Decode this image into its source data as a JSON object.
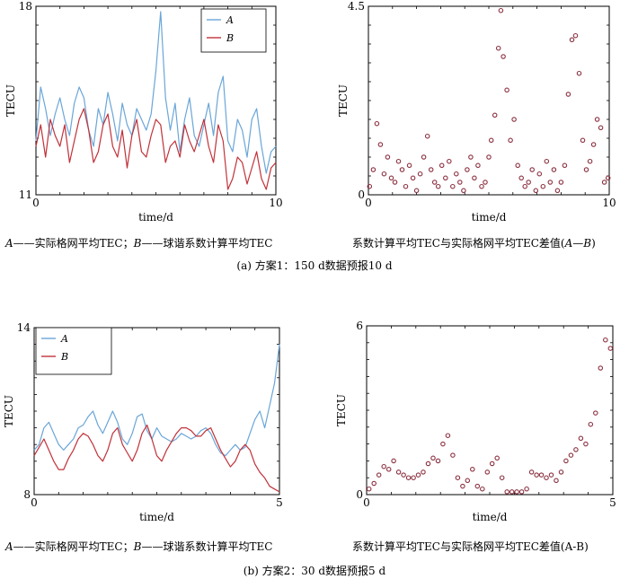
{
  "colors": {
    "A": "#6aa6d8",
    "B": "#c0323a",
    "marker": "#8b3040",
    "axis": "#000000"
  },
  "captions": {
    "panel_a_left": {
      "a": "A",
      "mid": "——实际格网平均TEC；",
      "b": "B",
      "end": "——球谐系数计算平均TEC"
    },
    "panel_a_right": {
      "pre": "系数计算平均TEC与实际格网平均TEC差值(",
      "a": "A",
      "dash": "—",
      "b": "B",
      "post": ")"
    },
    "panel_a": "(a) 方案1：150 d数据预报10 d",
    "panel_b_left": {
      "a": "A",
      "mid": "——实际格网平均TEC；",
      "b": "B",
      "end": "——球谐系数计算平均TEC"
    },
    "panel_b_right": "系数计算平均TEC与实际格网平均TEC差值(A-B)",
    "panel_b": "(b) 方案2：30 d数据预报5 d"
  },
  "chart_data": [
    {
      "id": "a_line",
      "type": "line",
      "xlabel": "time/d",
      "ylabel": "TECU",
      "xlim": [
        0,
        10
      ],
      "ylim": [
        11,
        18
      ],
      "xticks": [
        0,
        10
      ],
      "yticks": [
        11,
        18
      ],
      "legend": "top-center",
      "series": [
        {
          "name": "A",
          "x": [
            0,
            0.2,
            0.4,
            0.6,
            0.8,
            1.0,
            1.2,
            1.4,
            1.6,
            1.8,
            2.0,
            2.2,
            2.4,
            2.6,
            2.8,
            3.0,
            3.2,
            3.4,
            3.6,
            3.8,
            4.0,
            4.2,
            4.4,
            4.6,
            4.8,
            5.0,
            5.2,
            5.4,
            5.6,
            5.8,
            6.0,
            6.2,
            6.4,
            6.6,
            6.8,
            7.0,
            7.2,
            7.4,
            7.6,
            7.8,
            8.0,
            8.2,
            8.4,
            8.6,
            8.8,
            9.0,
            9.2,
            9.4,
            9.6,
            9.8,
            10.0
          ],
          "values": [
            13.0,
            15.0,
            14.2,
            13.2,
            14.0,
            14.6,
            13.8,
            13.2,
            14.4,
            15.0,
            14.6,
            13.4,
            12.8,
            14.2,
            13.6,
            14.8,
            14.0,
            13.0,
            14.4,
            13.6,
            13.2,
            14.2,
            13.8,
            13.4,
            14.0,
            15.6,
            17.8,
            14.6,
            13.4,
            14.4,
            12.6,
            13.8,
            14.6,
            13.2,
            12.8,
            13.6,
            14.4,
            13.2,
            14.8,
            15.4,
            13.0,
            12.6,
            13.8,
            13.4,
            12.4,
            13.8,
            14.2,
            12.8,
            11.8,
            12.6,
            12.8
          ]
        },
        {
          "name": "B",
          "x": [
            0,
            0.2,
            0.4,
            0.6,
            0.8,
            1.0,
            1.2,
            1.4,
            1.6,
            1.8,
            2.0,
            2.2,
            2.4,
            2.6,
            2.8,
            3.0,
            3.2,
            3.4,
            3.6,
            3.8,
            4.0,
            4.2,
            4.4,
            4.6,
            4.8,
            5.0,
            5.2,
            5.4,
            5.6,
            5.8,
            6.0,
            6.2,
            6.4,
            6.6,
            6.8,
            7.0,
            7.2,
            7.4,
            7.6,
            7.8,
            8.0,
            8.2,
            8.4,
            8.6,
            8.8,
            9.0,
            9.2,
            9.4,
            9.6,
            9.8,
            10.0
          ],
          "values": [
            12.8,
            13.6,
            12.4,
            13.8,
            13.2,
            12.8,
            13.6,
            12.2,
            13.0,
            13.8,
            14.2,
            13.4,
            12.2,
            12.6,
            13.6,
            14.0,
            12.8,
            12.4,
            13.4,
            12.0,
            13.2,
            13.8,
            12.6,
            12.4,
            13.2,
            13.8,
            13.6,
            12.2,
            12.8,
            13.0,
            12.4,
            13.6,
            13.0,
            12.6,
            13.2,
            13.8,
            12.8,
            12.2,
            13.6,
            13.0,
            11.2,
            11.6,
            12.4,
            12.2,
            11.4,
            12.0,
            12.6,
            11.6,
            11.2,
            12.0,
            12.2
          ]
        }
      ]
    },
    {
      "id": "a_scatter",
      "type": "scatter",
      "xlabel": "time/d",
      "ylabel": "TECU",
      "xlim": [
        0,
        10
      ],
      "ylim": [
        0,
        4.5
      ],
      "xticks": [
        0,
        10
      ],
      "yticks": [
        0,
        4.5
      ],
      "x": [
        0.05,
        0.2,
        0.35,
        0.5,
        0.65,
        0.8,
        0.95,
        1.1,
        1.25,
        1.4,
        1.55,
        1.7,
        1.85,
        2.0,
        2.15,
        2.3,
        2.45,
        2.6,
        2.75,
        2.9,
        3.05,
        3.2,
        3.35,
        3.5,
        3.65,
        3.8,
        3.95,
        4.1,
        4.25,
        4.4,
        4.55,
        4.7,
        4.85,
        5.0,
        5.1,
        5.25,
        5.4,
        5.5,
        5.6,
        5.75,
        5.9,
        6.05,
        6.2,
        6.35,
        6.5,
        6.65,
        6.8,
        6.95,
        7.1,
        7.25,
        7.4,
        7.55,
        7.7,
        7.85,
        8.0,
        8.15,
        8.3,
        8.45,
        8.6,
        8.75,
        8.9,
        9.05,
        9.2,
        9.35,
        9.5,
        9.65,
        9.8,
        9.95
      ],
      "values": [
        0.2,
        0.6,
        1.7,
        1.2,
        0.5,
        0.9,
        0.4,
        0.3,
        0.8,
        0.6,
        0.2,
        0.7,
        0.4,
        0.1,
        0.5,
        0.9,
        1.4,
        0.6,
        0.3,
        0.2,
        0.7,
        0.4,
        0.8,
        0.2,
        0.5,
        0.3,
        0.1,
        0.6,
        0.9,
        0.4,
        0.7,
        0.2,
        0.3,
        0.9,
        1.3,
        1.9,
        3.5,
        4.4,
        3.3,
        2.5,
        1.3,
        1.8,
        0.7,
        0.4,
        0.2,
        0.3,
        0.6,
        0.1,
        0.5,
        0.2,
        0.8,
        0.3,
        0.6,
        0.1,
        0.3,
        0.7,
        2.4,
        3.7,
        3.8,
        2.9,
        1.3,
        0.6,
        0.8,
        1.2,
        1.8,
        1.6,
        0.3,
        0.4
      ]
    },
    {
      "id": "b_line",
      "type": "line",
      "xlabel": "time/d",
      "ylabel": "TECU",
      "xlim": [
        0,
        5
      ],
      "ylim": [
        8,
        14
      ],
      "xticks": [
        0,
        5
      ],
      "yticks": [
        8,
        14
      ],
      "legend": "top-left",
      "series": [
        {
          "name": "A",
          "x": [
            0,
            0.1,
            0.2,
            0.3,
            0.4,
            0.5,
            0.6,
            0.7,
            0.8,
            0.9,
            1.0,
            1.1,
            1.2,
            1.3,
            1.4,
            1.5,
            1.6,
            1.7,
            1.8,
            1.9,
            2.0,
            2.1,
            2.2,
            2.3,
            2.4,
            2.5,
            2.6,
            2.7,
            2.8,
            2.9,
            3.0,
            3.1,
            3.2,
            3.3,
            3.4,
            3.5,
            3.6,
            3.7,
            3.8,
            3.9,
            4.0,
            4.1,
            4.2,
            4.3,
            4.4,
            4.5,
            4.6,
            4.7,
            4.8,
            4.9,
            5.0
          ],
          "values": [
            9.6,
            9.8,
            10.4,
            10.6,
            10.2,
            9.8,
            9.6,
            9.8,
            10.0,
            10.4,
            10.5,
            10.8,
            11.0,
            10.5,
            10.2,
            10.6,
            11.0,
            10.6,
            10.0,
            9.8,
            10.2,
            10.8,
            10.9,
            10.3,
            10.0,
            10.4,
            10.1,
            10.0,
            9.9,
            10.0,
            10.2,
            10.1,
            10.0,
            10.1,
            10.3,
            10.4,
            10.2,
            9.8,
            9.5,
            9.4,
            9.6,
            9.8,
            9.6,
            9.7,
            10.2,
            10.7,
            11.0,
            10.4,
            11.2,
            12.0,
            13.4
          ]
        },
        {
          "name": "B",
          "x": [
            0,
            0.1,
            0.2,
            0.3,
            0.4,
            0.5,
            0.6,
            0.7,
            0.8,
            0.9,
            1.0,
            1.1,
            1.2,
            1.3,
            1.4,
            1.5,
            1.6,
            1.7,
            1.8,
            1.9,
            2.0,
            2.1,
            2.2,
            2.3,
            2.4,
            2.5,
            2.6,
            2.7,
            2.8,
            2.9,
            3.0,
            3.1,
            3.2,
            3.3,
            3.4,
            3.5,
            3.6,
            3.7,
            3.8,
            3.9,
            4.0,
            4.1,
            4.2,
            4.3,
            4.4,
            4.5,
            4.6,
            4.7,
            4.8,
            4.9,
            5.0
          ],
          "values": [
            9.4,
            9.7,
            10.0,
            9.6,
            9.2,
            8.9,
            8.9,
            9.3,
            9.6,
            10.0,
            10.2,
            10.1,
            9.8,
            9.4,
            9.2,
            9.6,
            10.2,
            10.4,
            9.8,
            9.5,
            9.2,
            9.6,
            10.2,
            10.5,
            10.0,
            9.4,
            9.2,
            9.6,
            9.9,
            10.2,
            10.4,
            10.4,
            10.3,
            10.1,
            10.1,
            10.3,
            10.4,
            10.0,
            9.6,
            9.3,
            9.0,
            9.2,
            9.6,
            9.8,
            9.6,
            9.1,
            8.8,
            8.6,
            8.3,
            8.2,
            8.1
          ]
        }
      ]
    },
    {
      "id": "b_scatter",
      "type": "scatter",
      "xlabel": "time/d",
      "ylabel": "TECU",
      "xlim": [
        0,
        5
      ],
      "ylim": [
        0,
        6
      ],
      "xticks": [
        0,
        5
      ],
      "yticks": [
        0,
        6
      ],
      "x": [
        0.05,
        0.15,
        0.25,
        0.35,
        0.45,
        0.55,
        0.65,
        0.75,
        0.85,
        0.95,
        1.05,
        1.15,
        1.25,
        1.35,
        1.45,
        1.55,
        1.65,
        1.75,
        1.85,
        1.95,
        2.05,
        2.15,
        2.25,
        2.35,
        2.45,
        2.55,
        2.65,
        2.75,
        2.85,
        2.95,
        3.05,
        3.15,
        3.25,
        3.35,
        3.45,
        3.55,
        3.65,
        3.75,
        3.85,
        3.95,
        4.05,
        4.15,
        4.25,
        4.35,
        4.45,
        4.55,
        4.65,
        4.75,
        4.85,
        4.95
      ],
      "values": [
        0.2,
        0.4,
        0.7,
        1.0,
        0.9,
        1.2,
        0.8,
        0.7,
        0.6,
        0.6,
        0.7,
        0.8,
        1.1,
        1.3,
        1.2,
        1.8,
        2.1,
        1.4,
        0.6,
        0.3,
        0.5,
        0.9,
        0.3,
        0.2,
        0.8,
        1.1,
        1.3,
        0.6,
        0.1,
        0.1,
        0.1,
        0.1,
        0.2,
        0.8,
        0.7,
        0.7,
        0.6,
        0.7,
        0.5,
        0.8,
        1.2,
        1.4,
        1.6,
        2.0,
        1.8,
        2.5,
        2.9,
        4.5,
        5.5,
        5.2
      ]
    }
  ]
}
